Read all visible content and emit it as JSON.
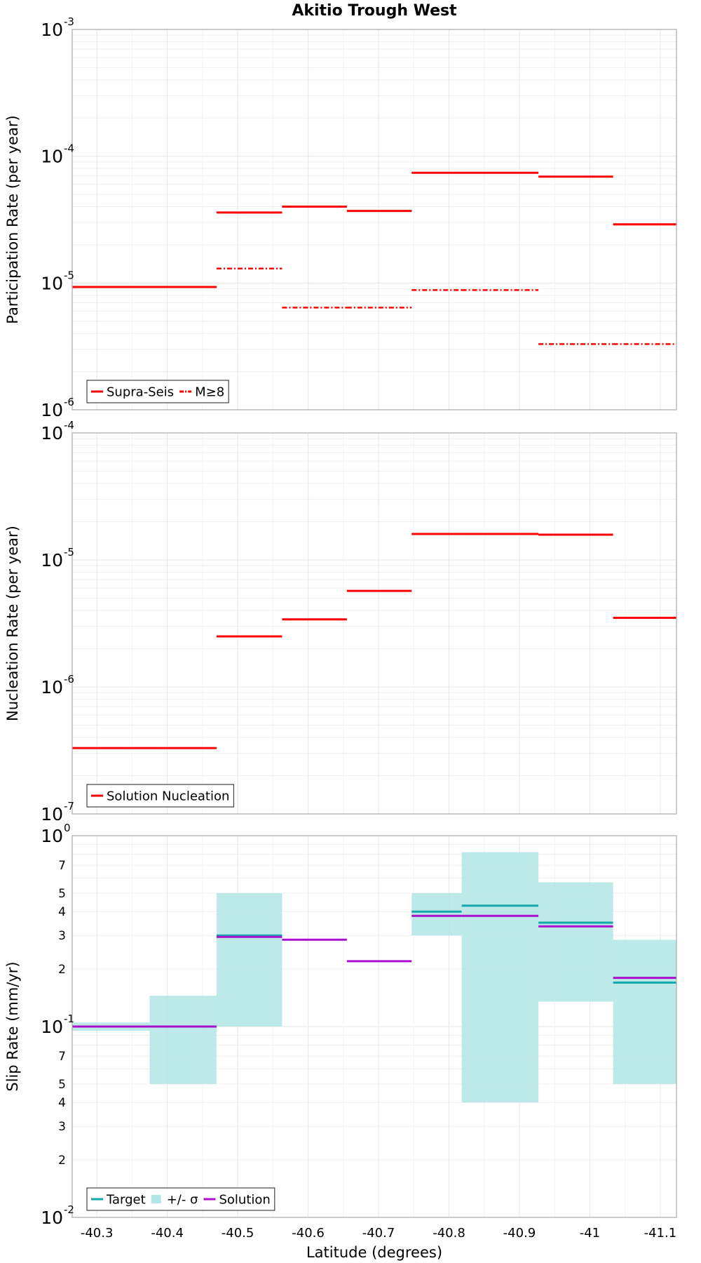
{
  "colors": {
    "red": "#ff0000",
    "teal": "#10aaaa",
    "purple": "#aa10cc",
    "band": "#b3e5e5",
    "grid": "#e6e6e6",
    "frame": "#aaaaaa"
  },
  "chart_data": {
    "type": "line",
    "title": "Akitio Trough West",
    "xlabel": "Latitude (degrees)",
    "xlim": [
      -40.265,
      -41.123
    ],
    "x_ticks": [
      {
        "v": -40.3,
        "label": "-40.3"
      },
      {
        "v": -40.4,
        "label": "-40.4"
      },
      {
        "v": -40.5,
        "label": "-40.5"
      },
      {
        "v": -40.6,
        "label": "-40.6"
      },
      {
        "v": -40.7,
        "label": "-40.7"
      },
      {
        "v": -40.8,
        "label": "-40.8"
      },
      {
        "v": -40.9,
        "label": "-40.9"
      },
      {
        "v": -41.0,
        "label": "-41"
      },
      {
        "v": -41.1,
        "label": "-41.1"
      }
    ],
    "panels": [
      {
        "id": "participation",
        "ylabel": "Participation Rate (per year)",
        "yscale": "log",
        "ylim": [
          1e-06,
          0.001
        ],
        "y_major_ticks": [
          {
            "v": 1e-06,
            "base": "10",
            "exp": "-6"
          },
          {
            "v": 1e-05,
            "base": "10",
            "exp": "-5"
          },
          {
            "v": 0.0001,
            "base": "10",
            "exp": "-4"
          },
          {
            "v": 0.001,
            "base": "10",
            "exp": "-3"
          }
        ],
        "y_minor_labels": [],
        "legend": {
          "position": "bottom-left",
          "entries": [
            {
              "label": "Supra-Seis",
              "kind": "line",
              "color": "#ff0000",
              "dash": "solid"
            },
            {
              "label": "M≥8",
              "kind": "line",
              "color": "#ff0000",
              "dash": "dashdot"
            }
          ]
        },
        "series": [
          {
            "name": "Supra-Seis",
            "color": "#ff0000",
            "dash": "solid",
            "segments": [
              {
                "x": [
                  -40.265,
                  -40.375
                ],
                "y": 9.3e-06
              },
              {
                "x": [
                  -40.375,
                  -40.47
                ],
                "y": 9.3e-06
              },
              {
                "x": [
                  -40.47,
                  -40.563
                ],
                "y": 3.6e-05
              },
              {
                "x": [
                  -40.563,
                  -40.655
                ],
                "y": 4e-05
              },
              {
                "x": [
                  -40.655,
                  -40.747
                ],
                "y": 3.7e-05
              },
              {
                "x": [
                  -40.747,
                  -40.818
                ],
                "y": 7.4e-05
              },
              {
                "x": [
                  -40.818,
                  -40.927
                ],
                "y": 7.4e-05
              },
              {
                "x": [
                  -40.927,
                  -41.033
                ],
                "y": 6.9e-05
              },
              {
                "x": [
                  -41.033,
                  -41.123
                ],
                "y": 2.9e-05
              }
            ]
          },
          {
            "name": "M≥8",
            "color": "#ff0000",
            "dash": "dashdot",
            "segments": [
              {
                "x": [
                  -40.47,
                  -40.563
                ],
                "y": 1.3e-05
              },
              {
                "x": [
                  -40.563,
                  -40.655
                ],
                "y": 6.4e-06
              },
              {
                "x": [
                  -40.655,
                  -40.747
                ],
                "y": 6.4e-06
              },
              {
                "x": [
                  -40.747,
                  -40.818
                ],
                "y": 8.8e-06
              },
              {
                "x": [
                  -40.818,
                  -40.927
                ],
                "y": 8.8e-06
              },
              {
                "x": [
                  -40.927,
                  -41.033
                ],
                "y": 3.3e-06
              },
              {
                "x": [
                  -41.033,
                  -41.123
                ],
                "y": 3.3e-06
              }
            ]
          }
        ]
      },
      {
        "id": "nucleation",
        "ylabel": "Nucleation Rate (per year)",
        "yscale": "log",
        "ylim": [
          1e-07,
          0.0001
        ],
        "y_major_ticks": [
          {
            "v": 1e-07,
            "base": "10",
            "exp": "-7"
          },
          {
            "v": 1e-06,
            "base": "10",
            "exp": "-6"
          },
          {
            "v": 1e-05,
            "base": "10",
            "exp": "-5"
          },
          {
            "v": 0.0001,
            "base": "10",
            "exp": "-4"
          }
        ],
        "y_minor_labels": [],
        "legend": {
          "position": "bottom-left",
          "entries": [
            {
              "label": "Solution Nucleation",
              "kind": "line",
              "color": "#ff0000",
              "dash": "solid"
            }
          ]
        },
        "series": [
          {
            "name": "Solution Nucleation",
            "color": "#ff0000",
            "dash": "solid",
            "segments": [
              {
                "x": [
                  -40.265,
                  -40.375
                ],
                "y": 3.3e-07
              },
              {
                "x": [
                  -40.375,
                  -40.47
                ],
                "y": 3.3e-07
              },
              {
                "x": [
                  -40.47,
                  -40.563
                ],
                "y": 2.5e-06
              },
              {
                "x": [
                  -40.563,
                  -40.655
                ],
                "y": 3.4e-06
              },
              {
                "x": [
                  -40.655,
                  -40.747
                ],
                "y": 5.7e-06
              },
              {
                "x": [
                  -40.747,
                  -40.818
                ],
                "y": 1.6e-05
              },
              {
                "x": [
                  -40.818,
                  -40.927
                ],
                "y": 1.6e-05
              },
              {
                "x": [
                  -40.927,
                  -41.033
                ],
                "y": 1.58e-05
              },
              {
                "x": [
                  -41.033,
                  -41.123
                ],
                "y": 3.5e-06
              }
            ]
          }
        ]
      },
      {
        "id": "slip",
        "ylabel": "Slip Rate (mm/yr)",
        "yscale": "log",
        "ylim": [
          0.01,
          1
        ],
        "y_major_ticks": [
          {
            "v": 0.01,
            "base": "10",
            "exp": "-2"
          },
          {
            "v": 0.1,
            "base": "10",
            "exp": "-1"
          },
          {
            "v": 1,
            "base": "10",
            "exp": "0"
          }
        ],
        "y_minor_labels": [
          {
            "v": 0.02,
            "label": "2"
          },
          {
            "v": 0.03,
            "label": "3"
          },
          {
            "v": 0.04,
            "label": "4"
          },
          {
            "v": 0.05,
            "label": "5"
          },
          {
            "v": 0.07,
            "label": "7"
          },
          {
            "v": 0.2,
            "label": "2"
          },
          {
            "v": 0.3,
            "label": "3"
          },
          {
            "v": 0.4,
            "label": "4"
          },
          {
            "v": 0.5,
            "label": "5"
          },
          {
            "v": 0.7,
            "label": "7"
          }
        ],
        "legend": {
          "position": "bottom-left",
          "entries": [
            {
              "label": "Target",
              "kind": "line",
              "color": "#10aaaa",
              "dash": "solid"
            },
            {
              "label": "+/- σ",
              "kind": "box",
              "color": "#b3e5e5",
              "dash": "solid"
            },
            {
              "label": "Solution",
              "kind": "line",
              "color": "#aa10cc",
              "dash": "solid"
            }
          ]
        },
        "bands": [
          {
            "x": [
              -40.265,
              -40.375
            ],
            "y": [
              0.095,
              0.105
            ]
          },
          {
            "x": [
              -40.375,
              -40.47
            ],
            "y": [
              0.05,
              0.145
            ]
          },
          {
            "x": [
              -40.47,
              -40.563
            ],
            "y": [
              0.1,
              0.5
            ]
          },
          {
            "x": [
              -40.747,
              -40.818
            ],
            "y": [
              0.3,
              0.5
            ]
          },
          {
            "x": [
              -40.818,
              -40.927
            ],
            "y": [
              0.04,
              0.82
            ]
          },
          {
            "x": [
              -40.927,
              -41.033
            ],
            "y": [
              0.135,
              0.57
            ]
          },
          {
            "x": [
              -41.033,
              -41.123
            ],
            "y": [
              0.05,
              0.285
            ]
          }
        ],
        "series": [
          {
            "name": "Target",
            "color": "#10aaaa",
            "dash": "solid",
            "segments": [
              {
                "x": [
                  -40.265,
                  -40.375
                ],
                "y": 0.1
              },
              {
                "x": [
                  -40.375,
                  -40.47
                ],
                "y": 0.1
              },
              {
                "x": [
                  -40.47,
                  -40.563
                ],
                "y": 0.3
              },
              {
                "x": [
                  -40.747,
                  -40.818
                ],
                "y": 0.4
              },
              {
                "x": [
                  -40.818,
                  -40.927
                ],
                "y": 0.43
              },
              {
                "x": [
                  -40.927,
                  -41.033
                ],
                "y": 0.35
              },
              {
                "x": [
                  -41.033,
                  -41.123
                ],
                "y": 0.17
              }
            ]
          },
          {
            "name": "Solution",
            "color": "#aa10cc",
            "dash": "solid",
            "segments": [
              {
                "x": [
                  -40.265,
                  -40.375
                ],
                "y": 0.1
              },
              {
                "x": [
                  -40.375,
                  -40.47
                ],
                "y": 0.1
              },
              {
                "x": [
                  -40.47,
                  -40.563
                ],
                "y": 0.295
              },
              {
                "x": [
                  -40.563,
                  -40.655
                ],
                "y": 0.285
              },
              {
                "x": [
                  -40.655,
                  -40.747
                ],
                "y": 0.22
              },
              {
                "x": [
                  -40.747,
                  -40.818
                ],
                "y": 0.38
              },
              {
                "x": [
                  -40.818,
                  -40.927
                ],
                "y": 0.38
              },
              {
                "x": [
                  -40.927,
                  -41.033
                ],
                "y": 0.335
              },
              {
                "x": [
                  -41.033,
                  -41.123
                ],
                "y": 0.18
              }
            ]
          }
        ]
      }
    ]
  }
}
